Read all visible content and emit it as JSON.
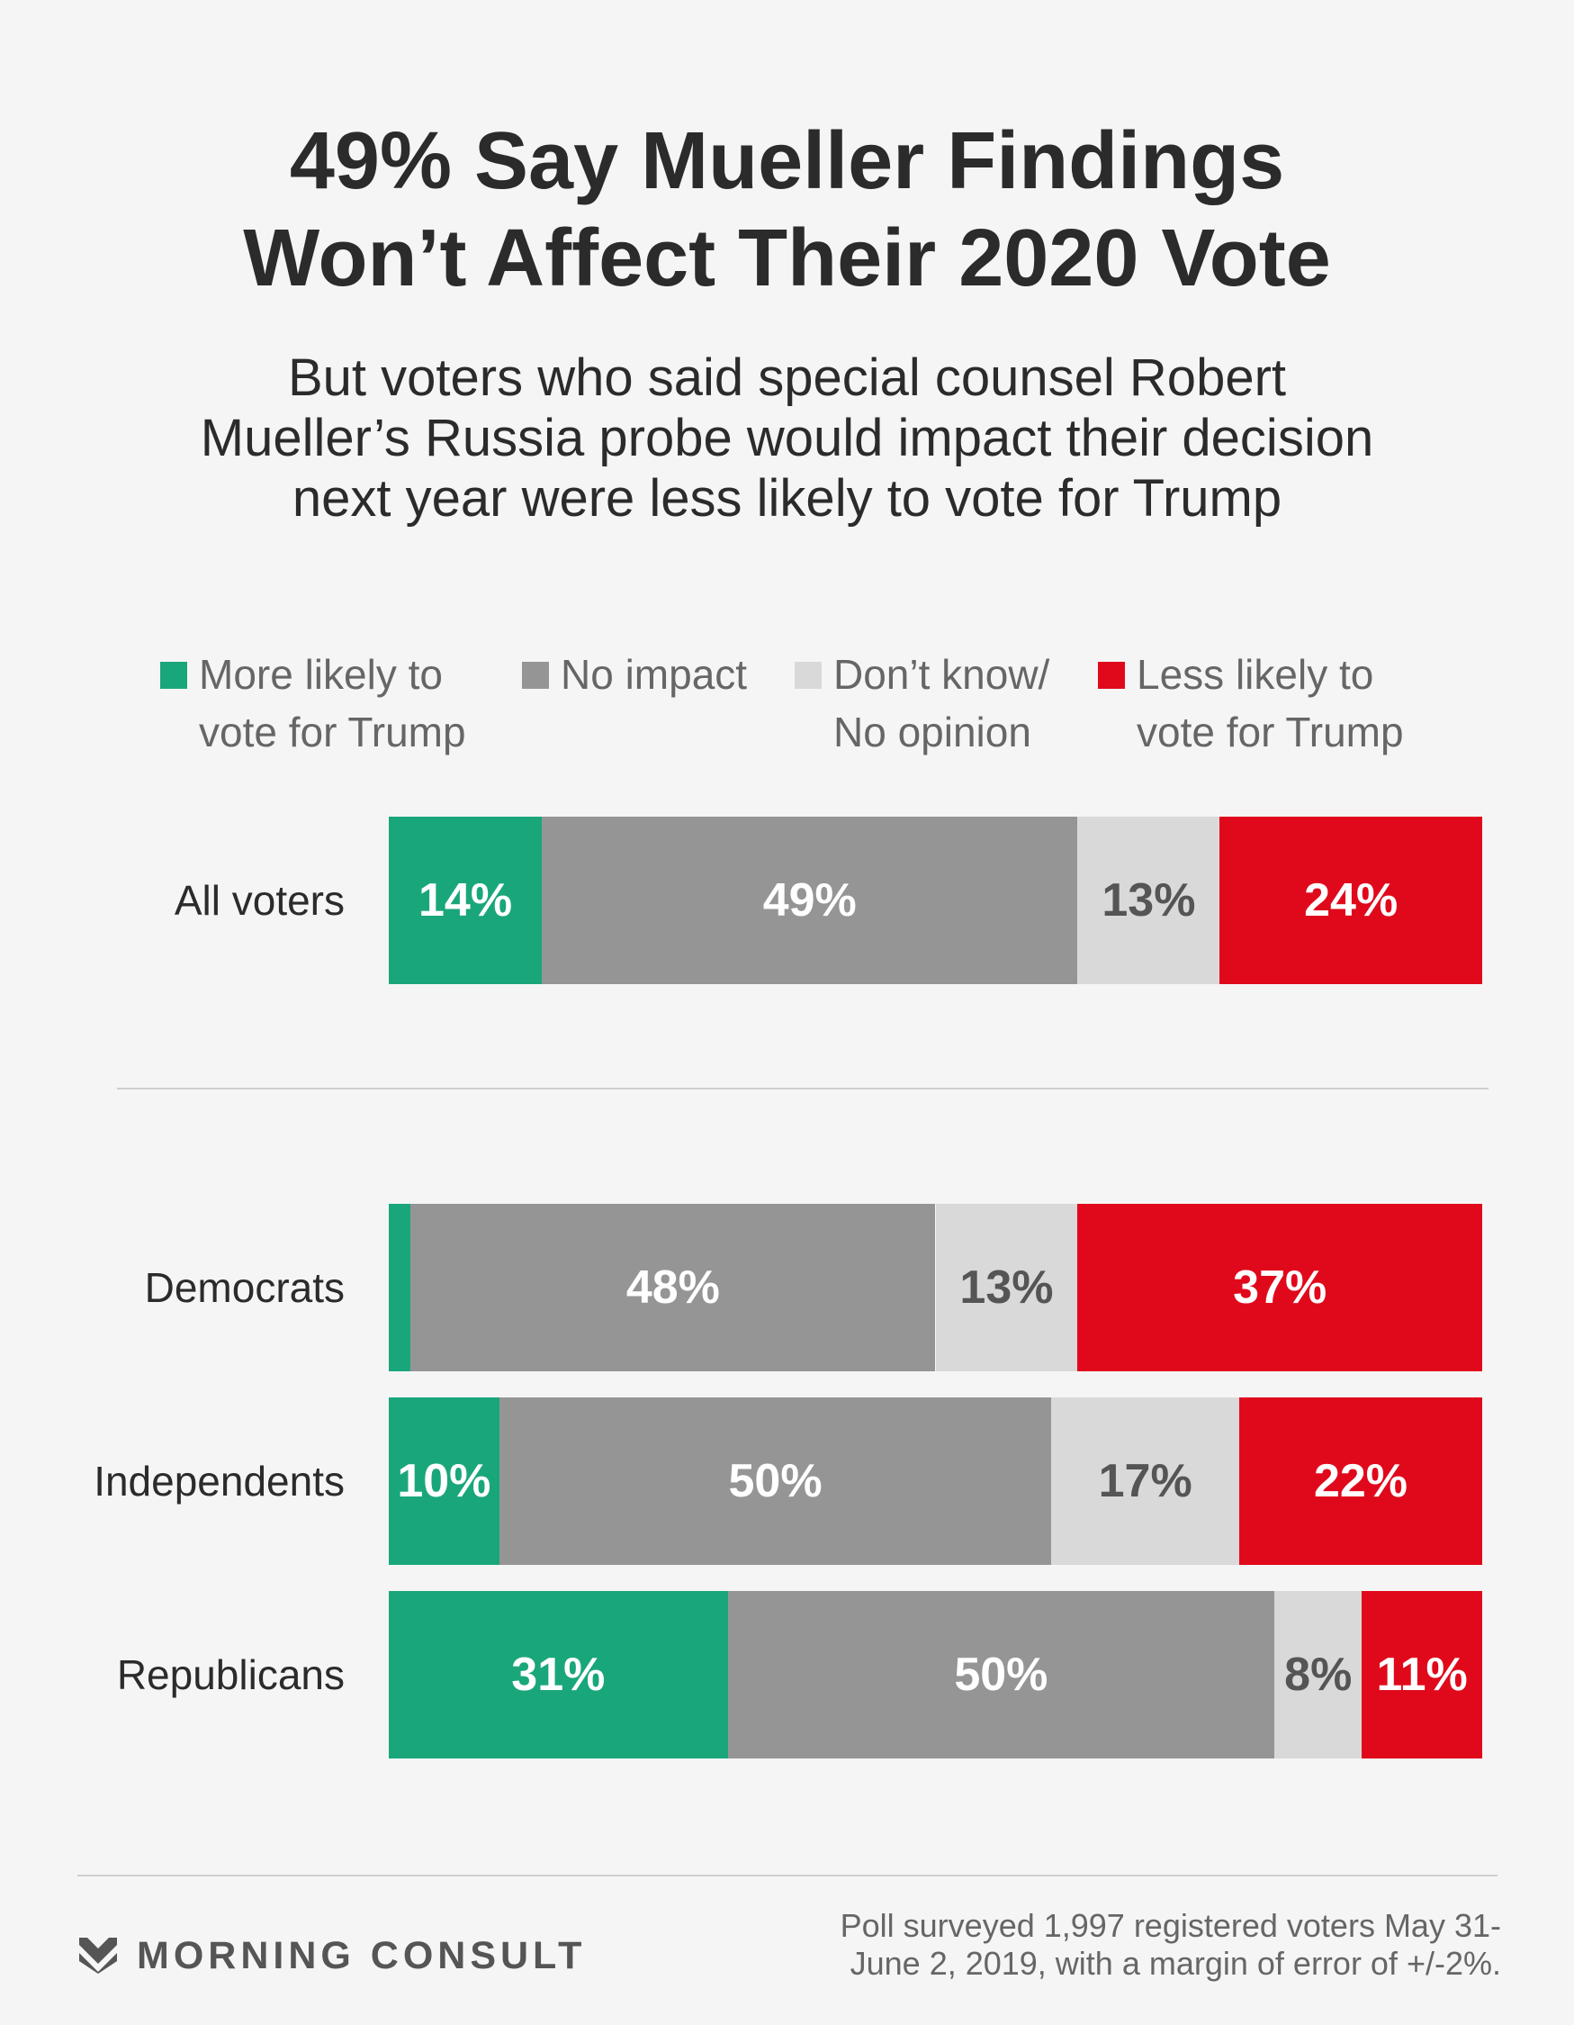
{
  "header": {
    "title_lines": [
      "49% Say Mueller Findings",
      "Won’t Affect Their 2020 Vote"
    ],
    "subtitle_lines": [
      "But voters who said special counsel Robert",
      "Mueller’s Russia probe would impact their decision",
      "next year were less likely to vote for Trump"
    ]
  },
  "legend": [
    {
      "lines": [
        "More likely to",
        "vote for Trump"
      ],
      "color": "#1aa67b"
    },
    {
      "lines": [
        "No impact",
        ""
      ],
      "color": "#959595"
    },
    {
      "lines": [
        "Don’t know/",
        "No opinion"
      ],
      "color": "#d9d9d9"
    },
    {
      "lines": [
        "Less likely to",
        "vote for Trump"
      ],
      "color": "#e0091b"
    }
  ],
  "chart_data": {
    "type": "bar",
    "orientation": "horizontal",
    "stacked": true,
    "categories": [
      "All voters",
      "Democrats",
      "Independents",
      "Republicans"
    ],
    "series": [
      {
        "name": "More likely to vote for Trump",
        "values": [
          14,
          2,
          10,
          31
        ],
        "labels": [
          "14%",
          "",
          "10%",
          "31%"
        ],
        "color": "#1aa67b",
        "label_color": "#ffffff"
      },
      {
        "name": "No impact",
        "values": [
          49,
          48,
          50,
          50
        ],
        "labels": [
          "49%",
          "48%",
          "50%",
          "50%"
        ],
        "color": "#959595",
        "label_color": "#ffffff"
      },
      {
        "name": "Don’t know/ No opinion",
        "values": [
          13,
          13,
          17,
          8
        ],
        "labels": [
          "13%",
          "13%",
          "17%",
          "8%"
        ],
        "color": "#d9d9d9",
        "label_color": "#555555"
      },
      {
        "name": "Less likely to vote for Trump",
        "values": [
          24,
          37,
          22,
          11
        ],
        "labels": [
          "24%",
          "37%",
          "22%",
          "11%"
        ],
        "color": "#e0091b",
        "label_color": "#ffffff"
      }
    ]
  },
  "footer": {
    "brand": "MORNING CONSULT",
    "logo_icon": "morning-consult-chevron-icon",
    "source_lines": [
      "Poll surveyed 1,997 registered voters May 31-",
      "June 2, 2019, with a margin of error of +/-2%."
    ]
  }
}
